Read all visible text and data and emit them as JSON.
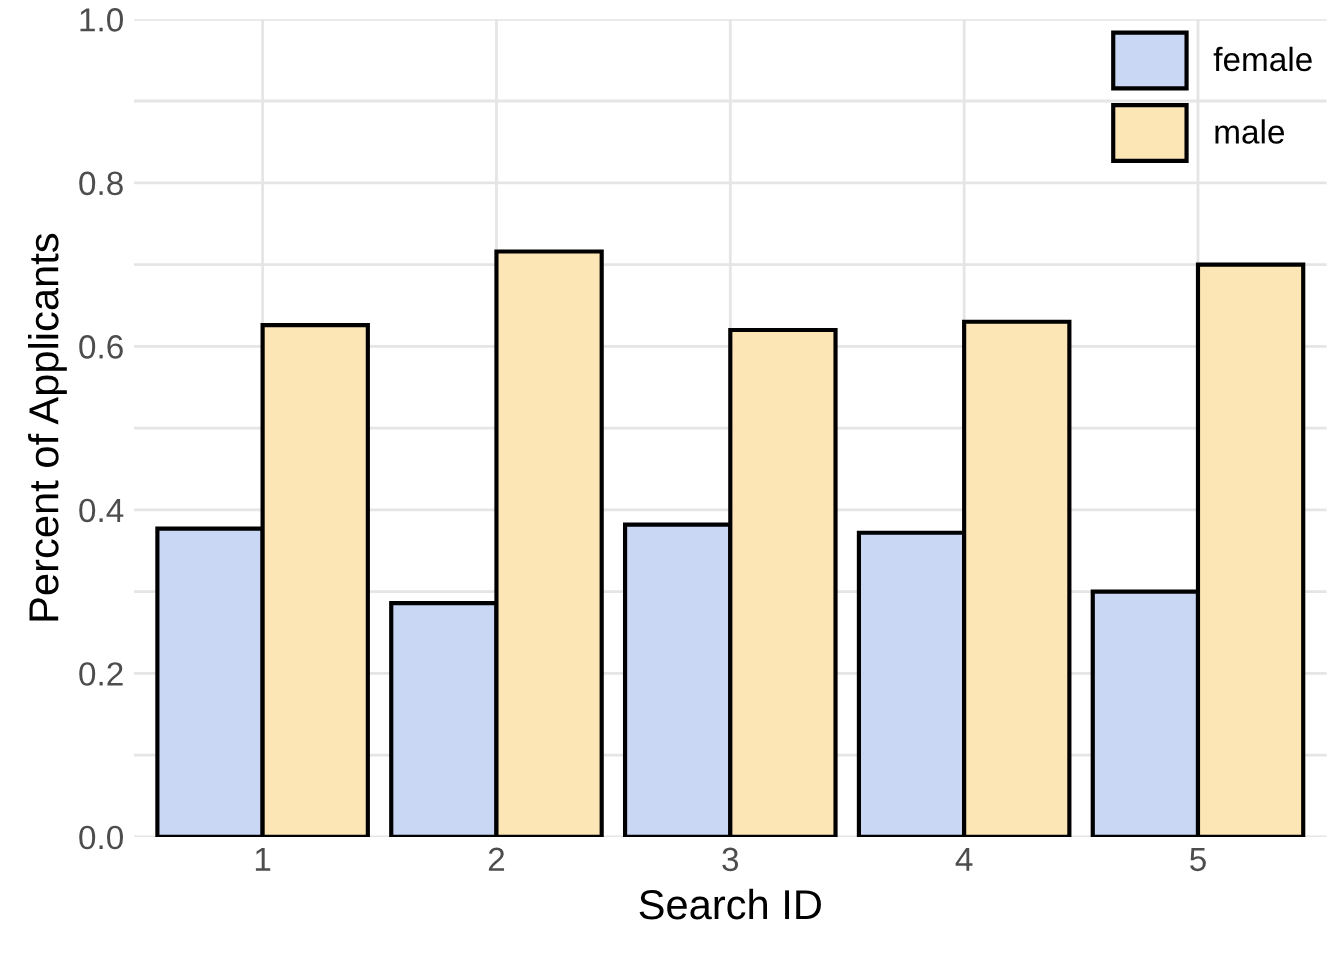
{
  "chart_data": {
    "type": "bar",
    "xlabel": "Search ID",
    "ylabel": "Percent of Applicants",
    "categories": [
      "1",
      "2",
      "3",
      "4",
      "5"
    ],
    "series": [
      {
        "name": "female",
        "color": "#c9d7f5",
        "values": [
          0.377,
          0.286,
          0.382,
          0.372,
          0.3
        ]
      },
      {
        "name": "male",
        "color": "#fde6b6",
        "values": [
          0.626,
          0.716,
          0.62,
          0.63,
          0.7
        ]
      }
    ],
    "ylim": [
      0,
      1.0
    ],
    "yticks": [
      {
        "value": 0,
        "label": "0.0"
      },
      {
        "value": 0.1,
        "label": null
      },
      {
        "value": 0.2,
        "label": "0.2"
      },
      {
        "value": 0.3,
        "label": null
      },
      {
        "value": 0.4,
        "label": "0.4"
      },
      {
        "value": 0.5,
        "label": null
      },
      {
        "value": 0.6,
        "label": "0.6"
      },
      {
        "value": 0.7,
        "label": null
      },
      {
        "value": 0.8,
        "label": "0.8"
      },
      {
        "value": 0.9,
        "label": null
      },
      {
        "value": 1.0,
        "label": "1.0"
      }
    ],
    "grid": true,
    "legend": "top right"
  }
}
